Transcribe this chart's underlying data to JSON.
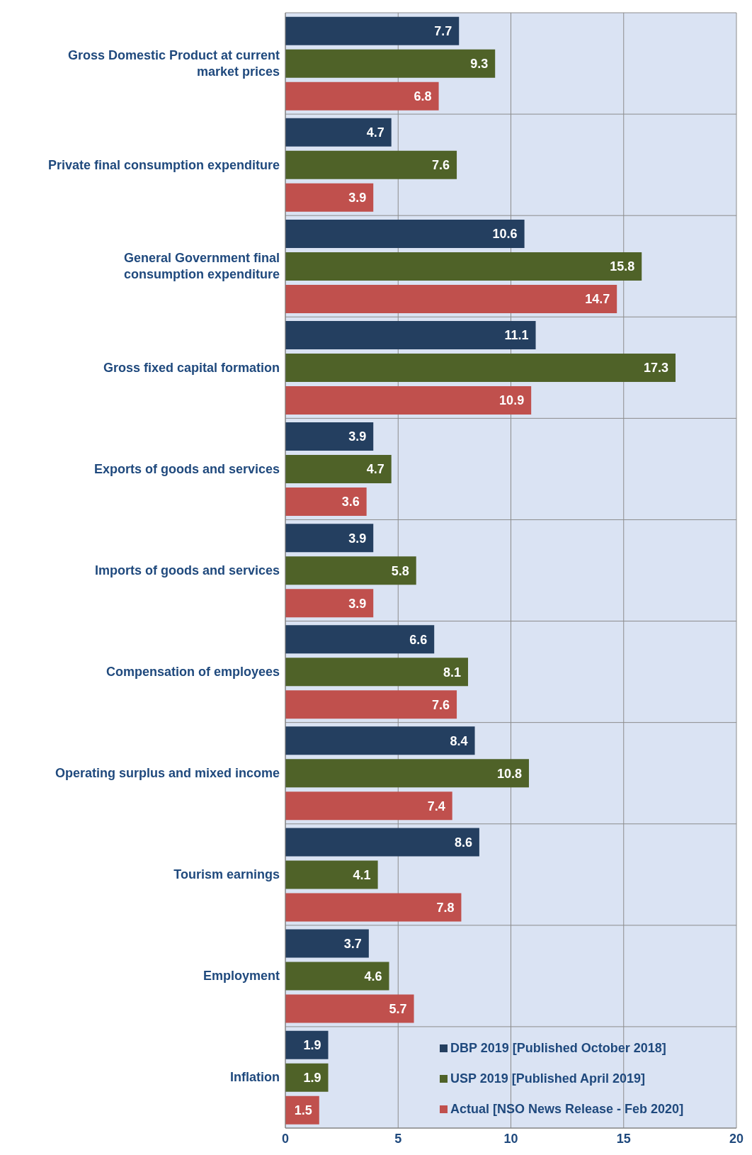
{
  "chart_data": {
    "type": "bar",
    "orientation": "horizontal",
    "categories": [
      "Gross Domestic Product at current market prices",
      "Private final consumption expenditure",
      "General Government final consumption expenditure",
      "Gross fixed capital formation",
      "Exports of goods and services",
      "Imports of goods and services",
      "Compensation of employees",
      "Operating surplus and mixed income",
      "Tourism earnings",
      "Employment",
      "Inflation"
    ],
    "series": [
      {
        "name": "DBP 2019 [Published October 2018]",
        "color": "#243f60",
        "values": [
          7.7,
          4.7,
          10.6,
          11.1,
          3.9,
          3.9,
          6.6,
          8.4,
          8.6,
          3.7,
          1.9
        ]
      },
      {
        "name": "USP 2019 [Published April 2019]",
        "color": "#4f6228",
        "values": [
          9.3,
          7.6,
          15.8,
          17.3,
          4.7,
          5.8,
          8.1,
          10.8,
          4.1,
          4.6,
          1.9
        ]
      },
      {
        "name": "Actual [NSO News Release - Feb 2020]",
        "color": "#c0504d",
        "values": [
          6.8,
          3.9,
          14.7,
          10.9,
          3.6,
          3.9,
          7.6,
          7.4,
          7.8,
          5.7,
          1.5
        ]
      }
    ],
    "xlim": [
      0,
      20
    ],
    "xticks": [
      0,
      5,
      10,
      15,
      20
    ],
    "grid": true,
    "legend": "bottom right",
    "data_labels": true
  }
}
